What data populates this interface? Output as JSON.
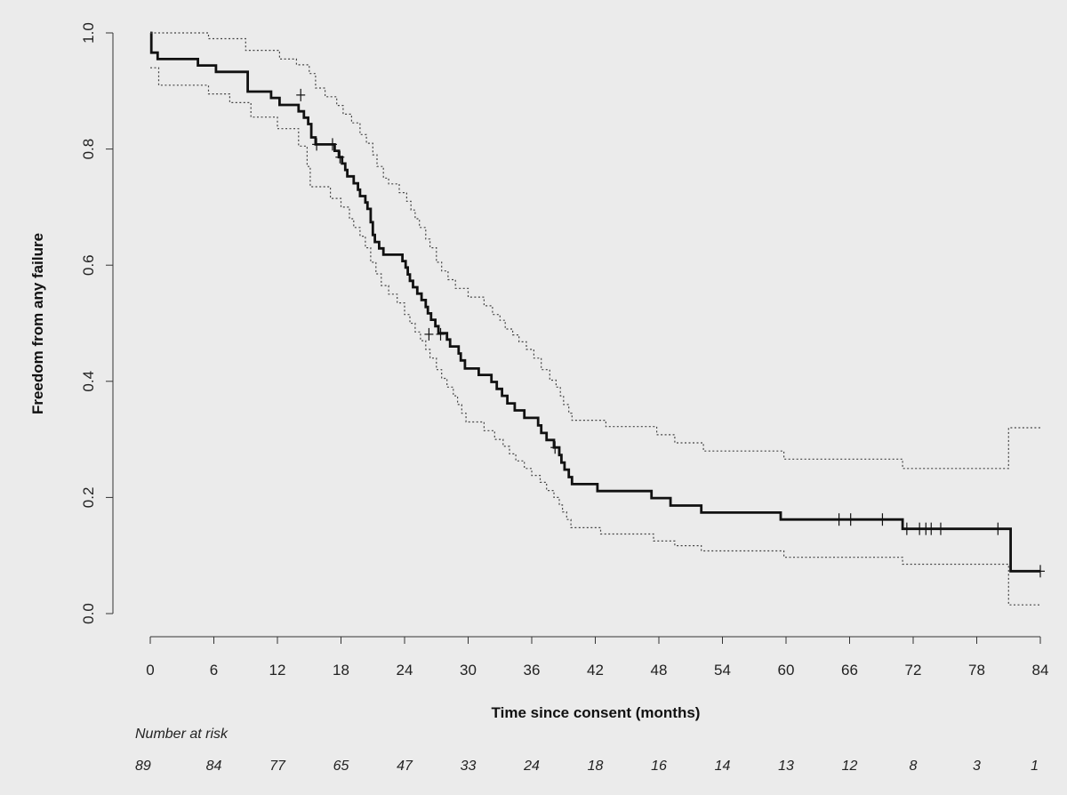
{
  "chart_data": {
    "type": "line",
    "title": "",
    "xlabel": "Time since consent (months)",
    "ylabel": "Freedom from any failure",
    "xlim": [
      0,
      84
    ],
    "ylim": [
      0,
      1
    ],
    "x_ticks": [
      "0",
      "6",
      "12",
      "18",
      "24",
      "30",
      "36",
      "42",
      "48",
      "54",
      "60",
      "66",
      "72",
      "78",
      "84"
    ],
    "y_ticks": [
      "0.0",
      "0.2",
      "0.4",
      "0.6",
      "0.8",
      "1.0"
    ],
    "grid": false,
    "series": [
      {
        "role": "estimate",
        "style": "solid-step",
        "points": [
          [
            0,
            1.0
          ],
          [
            0.1,
            0.966
          ],
          [
            0.7,
            0.955
          ],
          [
            4.5,
            0.944
          ],
          [
            6.2,
            0.933
          ],
          [
            9.2,
            0.899
          ],
          [
            11.4,
            0.888
          ],
          [
            12.2,
            0.876
          ],
          [
            14.0,
            0.865
          ],
          [
            14.5,
            0.854
          ],
          [
            14.9,
            0.843
          ],
          [
            15.2,
            0.82
          ],
          [
            15.6,
            0.808
          ],
          [
            17.4,
            0.797
          ],
          [
            17.8,
            0.786
          ],
          [
            18.1,
            0.775
          ],
          [
            18.4,
            0.764
          ],
          [
            18.6,
            0.753
          ],
          [
            19.2,
            0.741
          ],
          [
            19.6,
            0.73
          ],
          [
            19.8,
            0.719
          ],
          [
            20.3,
            0.708
          ],
          [
            20.5,
            0.697
          ],
          [
            20.8,
            0.674
          ],
          [
            21.0,
            0.652
          ],
          [
            21.2,
            0.64
          ],
          [
            21.6,
            0.629
          ],
          [
            22.0,
            0.618
          ],
          [
            23.8,
            0.607
          ],
          [
            24.1,
            0.596
          ],
          [
            24.3,
            0.584
          ],
          [
            24.5,
            0.573
          ],
          [
            24.8,
            0.562
          ],
          [
            25.2,
            0.551
          ],
          [
            25.6,
            0.54
          ],
          [
            26.0,
            0.528
          ],
          [
            26.2,
            0.517
          ],
          [
            26.5,
            0.506
          ],
          [
            26.9,
            0.495
          ],
          [
            27.2,
            0.483
          ],
          [
            28.0,
            0.472
          ],
          [
            28.3,
            0.46
          ],
          [
            29.1,
            0.448
          ],
          [
            29.3,
            0.436
          ],
          [
            29.7,
            0.422
          ],
          [
            31.0,
            0.411
          ],
          [
            32.2,
            0.399
          ],
          [
            32.7,
            0.387
          ],
          [
            33.2,
            0.375
          ],
          [
            33.7,
            0.362
          ],
          [
            34.4,
            0.35
          ],
          [
            35.3,
            0.337
          ],
          [
            36.6,
            0.324
          ],
          [
            36.9,
            0.311
          ],
          [
            37.4,
            0.299
          ],
          [
            38.1,
            0.286
          ],
          [
            38.6,
            0.273
          ],
          [
            38.8,
            0.26
          ],
          [
            39.1,
            0.248
          ],
          [
            39.5,
            0.235
          ],
          [
            39.8,
            0.223
          ],
          [
            42.2,
            0.211
          ],
          [
            47.3,
            0.199
          ],
          [
            49.1,
            0.186
          ],
          [
            52.0,
            0.174
          ],
          [
            59.5,
            0.162
          ],
          [
            71.0,
            0.146
          ],
          [
            81.2,
            0.073
          ],
          [
            84.0,
            0.073
          ]
        ],
        "censored": [
          [
            14.2,
            0.893
          ],
          [
            15.7,
            0.808
          ],
          [
            17.2,
            0.808
          ],
          [
            17.9,
            0.786
          ],
          [
            26.3,
            0.481
          ],
          [
            27.4,
            0.481
          ],
          [
            38.2,
            0.286
          ],
          [
            65.0,
            0.162
          ],
          [
            66.1,
            0.162
          ],
          [
            69.1,
            0.162
          ],
          [
            71.4,
            0.146
          ],
          [
            72.6,
            0.146
          ],
          [
            73.2,
            0.146
          ],
          [
            73.7,
            0.146
          ],
          [
            74.6,
            0.146
          ],
          [
            80.0,
            0.146
          ],
          [
            84.0,
            0.073
          ]
        ]
      },
      {
        "role": "upper-confidence-limit",
        "style": "dotted-step",
        "points": [
          [
            0,
            1.0
          ],
          [
            5.5,
            0.99
          ],
          [
            9.0,
            0.97
          ],
          [
            12.2,
            0.955
          ],
          [
            13.8,
            0.945
          ],
          [
            15.0,
            0.93
          ],
          [
            15.6,
            0.905
          ],
          [
            16.5,
            0.89
          ],
          [
            17.6,
            0.875
          ],
          [
            18.2,
            0.86
          ],
          [
            19.0,
            0.845
          ],
          [
            19.8,
            0.825
          ],
          [
            20.4,
            0.81
          ],
          [
            21.0,
            0.79
          ],
          [
            21.4,
            0.77
          ],
          [
            22.0,
            0.75
          ],
          [
            22.5,
            0.74
          ],
          [
            23.5,
            0.725
          ],
          [
            24.2,
            0.71
          ],
          [
            24.6,
            0.695
          ],
          [
            25.0,
            0.68
          ],
          [
            25.4,
            0.665
          ],
          [
            26.0,
            0.645
          ],
          [
            26.4,
            0.63
          ],
          [
            27.0,
            0.605
          ],
          [
            27.5,
            0.59
          ],
          [
            28.1,
            0.575
          ],
          [
            28.8,
            0.56
          ],
          [
            30.0,
            0.545
          ],
          [
            31.5,
            0.53
          ],
          [
            32.3,
            0.515
          ],
          [
            33.0,
            0.505
          ],
          [
            33.5,
            0.49
          ],
          [
            34.2,
            0.48
          ],
          [
            34.8,
            0.468
          ],
          [
            35.5,
            0.455
          ],
          [
            36.2,
            0.44
          ],
          [
            36.9,
            0.42
          ],
          [
            37.7,
            0.402
          ],
          [
            38.3,
            0.39
          ],
          [
            38.7,
            0.375
          ],
          [
            39.0,
            0.36
          ],
          [
            39.5,
            0.345
          ],
          [
            39.8,
            0.333
          ],
          [
            43.0,
            0.322
          ],
          [
            47.8,
            0.308
          ],
          [
            49.5,
            0.294
          ],
          [
            52.2,
            0.28
          ],
          [
            59.8,
            0.266
          ],
          [
            71.0,
            0.25
          ],
          [
            81.0,
            0.32
          ],
          [
            84.0,
            0.32
          ]
        ]
      },
      {
        "role": "lower-confidence-limit",
        "style": "dotted-step",
        "points": [
          [
            0,
            0.94
          ],
          [
            0.8,
            0.91
          ],
          [
            5.5,
            0.895
          ],
          [
            7.5,
            0.88
          ],
          [
            9.5,
            0.855
          ],
          [
            12.0,
            0.835
          ],
          [
            14.0,
            0.805
          ],
          [
            14.8,
            0.77
          ],
          [
            15.1,
            0.735
          ],
          [
            17.0,
            0.715
          ],
          [
            18.0,
            0.7
          ],
          [
            18.8,
            0.68
          ],
          [
            19.2,
            0.665
          ],
          [
            19.8,
            0.65
          ],
          [
            20.3,
            0.63
          ],
          [
            20.8,
            0.605
          ],
          [
            21.3,
            0.585
          ],
          [
            21.8,
            0.565
          ],
          [
            22.5,
            0.55
          ],
          [
            23.3,
            0.535
          ],
          [
            24.0,
            0.515
          ],
          [
            24.5,
            0.5
          ],
          [
            25.0,
            0.485
          ],
          [
            25.5,
            0.47
          ],
          [
            26.0,
            0.455
          ],
          [
            26.4,
            0.44
          ],
          [
            27.0,
            0.42
          ],
          [
            27.5,
            0.405
          ],
          [
            28.0,
            0.39
          ],
          [
            28.6,
            0.375
          ],
          [
            29.0,
            0.36
          ],
          [
            29.4,
            0.345
          ],
          [
            29.8,
            0.33
          ],
          [
            31.5,
            0.315
          ],
          [
            32.5,
            0.3
          ],
          [
            33.3,
            0.288
          ],
          [
            33.9,
            0.275
          ],
          [
            34.5,
            0.263
          ],
          [
            35.3,
            0.25
          ],
          [
            36.0,
            0.238
          ],
          [
            36.8,
            0.226
          ],
          [
            37.4,
            0.212
          ],
          [
            38.1,
            0.2
          ],
          [
            38.6,
            0.187
          ],
          [
            38.9,
            0.175
          ],
          [
            39.3,
            0.162
          ],
          [
            39.7,
            0.148
          ],
          [
            42.5,
            0.137
          ],
          [
            47.5,
            0.125
          ],
          [
            49.5,
            0.117
          ],
          [
            52.0,
            0.108
          ],
          [
            59.8,
            0.097
          ],
          [
            71.0,
            0.085
          ],
          [
            81.0,
            0.015
          ],
          [
            84.0,
            0.015
          ]
        ]
      }
    ],
    "risk_table": {
      "title": "Number at risk",
      "times": [
        0,
        6,
        12,
        18,
        24,
        30,
        36,
        42,
        48,
        54,
        60,
        66,
        72,
        78,
        84
      ],
      "counts": [
        "89",
        "84",
        "77",
        "65",
        "47",
        "33",
        "24",
        "18",
        "16",
        "14",
        "13",
        "12",
        "8",
        "3",
        "1"
      ]
    }
  }
}
